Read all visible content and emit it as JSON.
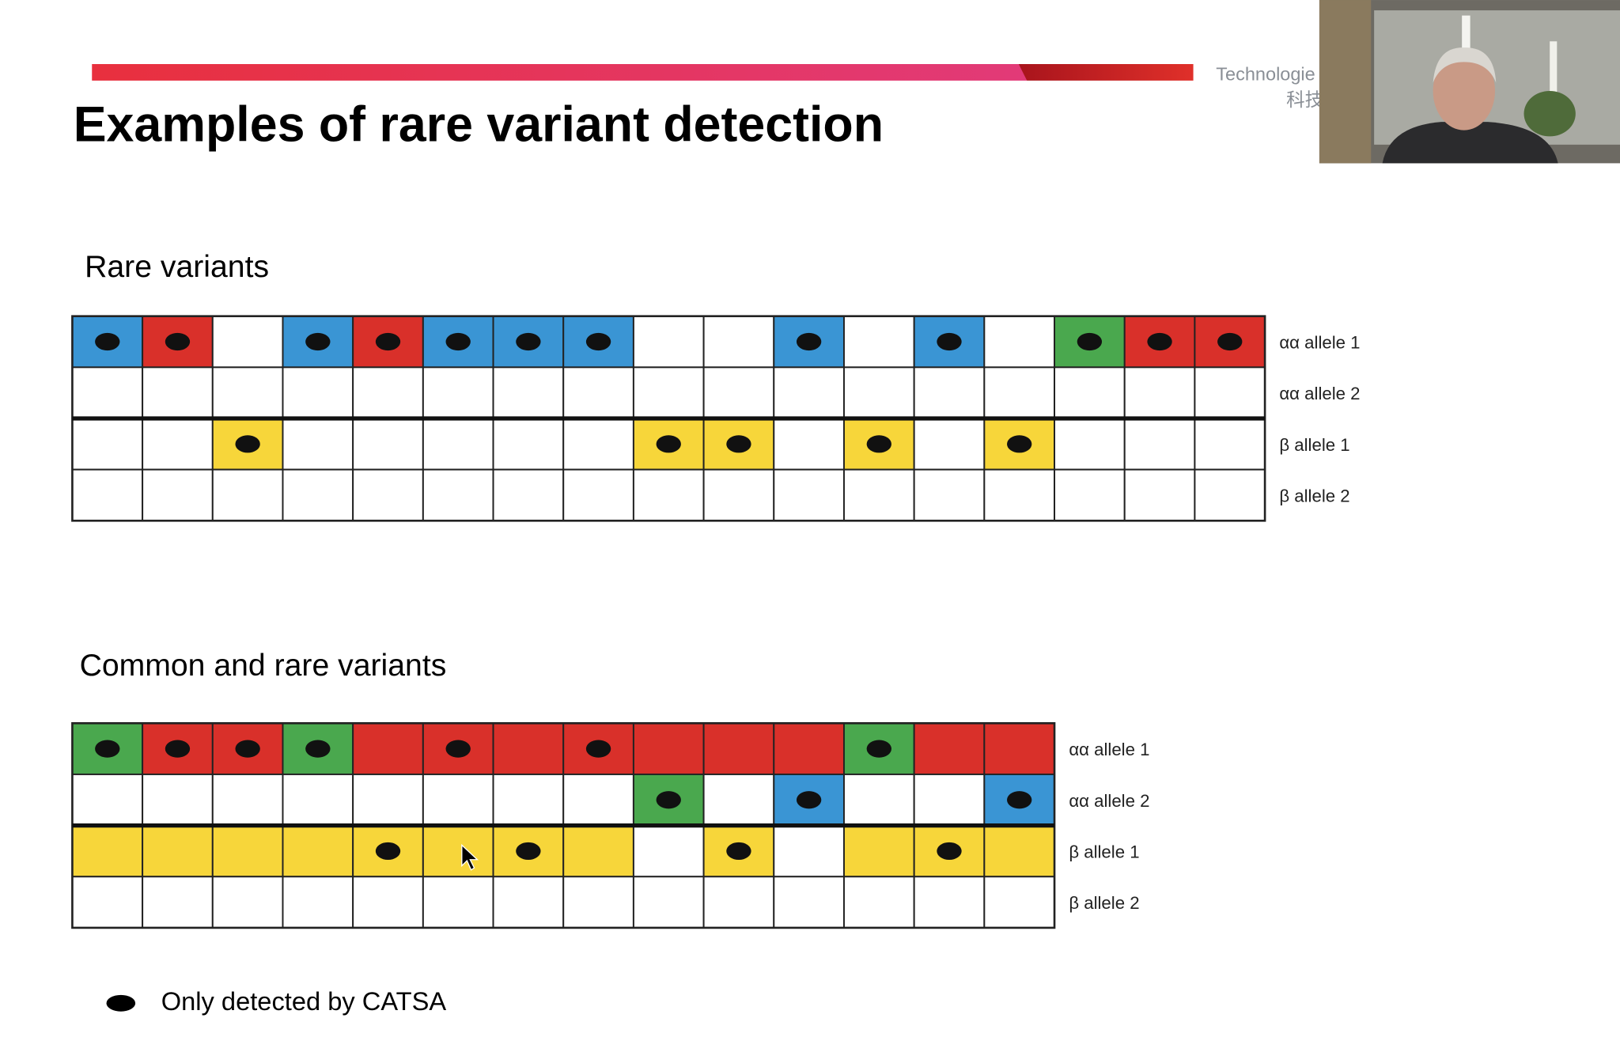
{
  "slide": {
    "title": "Examples of rare variant detection",
    "brand": {
      "text": "Technologie",
      "sub": "科技"
    },
    "sections": [
      {
        "heading": "Rare variants",
        "rows": [
          {
            "label": "αα allele 1",
            "cells": [
              {
                "color": "#3a95d4",
                "dot": true
              },
              {
                "color": "#d9302a",
                "dot": true
              },
              {
                "color": "#ffffff",
                "dot": false
              },
              {
                "color": "#3a95d4",
                "dot": true
              },
              {
                "color": "#d9302a",
                "dot": true
              },
              {
                "color": "#3a95d4",
                "dot": true
              },
              {
                "color": "#3a95d4",
                "dot": true
              },
              {
                "color": "#3a95d4",
                "dot": true
              },
              {
                "color": "#ffffff",
                "dot": false
              },
              {
                "color": "#ffffff",
                "dot": false
              },
              {
                "color": "#3a95d4",
                "dot": true
              },
              {
                "color": "#ffffff",
                "dot": false
              },
              {
                "color": "#3a95d4",
                "dot": true
              },
              {
                "color": "#ffffff",
                "dot": false
              },
              {
                "color": "#4aa84e",
                "dot": true
              },
              {
                "color": "#d9302a",
                "dot": true
              },
              {
                "color": "#d9302a",
                "dot": true
              }
            ]
          },
          {
            "label": "αα allele 2",
            "cells": [
              {
                "color": "#ffffff",
                "dot": false
              },
              {
                "color": "#ffffff",
                "dot": false
              },
              {
                "color": "#ffffff",
                "dot": false
              },
              {
                "color": "#ffffff",
                "dot": false
              },
              {
                "color": "#ffffff",
                "dot": false
              },
              {
                "color": "#ffffff",
                "dot": false
              },
              {
                "color": "#ffffff",
                "dot": false
              },
              {
                "color": "#ffffff",
                "dot": false
              },
              {
                "color": "#ffffff",
                "dot": false
              },
              {
                "color": "#ffffff",
                "dot": false
              },
              {
                "color": "#ffffff",
                "dot": false
              },
              {
                "color": "#ffffff",
                "dot": false
              },
              {
                "color": "#ffffff",
                "dot": false
              },
              {
                "color": "#ffffff",
                "dot": false
              },
              {
                "color": "#ffffff",
                "dot": false
              },
              {
                "color": "#ffffff",
                "dot": false
              },
              {
                "color": "#ffffff",
                "dot": false
              }
            ]
          },
          {
            "label": "β allele 1",
            "cells": [
              {
                "color": "#ffffff",
                "dot": false
              },
              {
                "color": "#ffffff",
                "dot": false
              },
              {
                "color": "#f7d63a",
                "dot": true
              },
              {
                "color": "#ffffff",
                "dot": false
              },
              {
                "color": "#ffffff",
                "dot": false
              },
              {
                "color": "#ffffff",
                "dot": false
              },
              {
                "color": "#ffffff",
                "dot": false
              },
              {
                "color": "#ffffff",
                "dot": false
              },
              {
                "color": "#f7d63a",
                "dot": true
              },
              {
                "color": "#f7d63a",
                "dot": true
              },
              {
                "color": "#ffffff",
                "dot": false
              },
              {
                "color": "#f7d63a",
                "dot": true
              },
              {
                "color": "#ffffff",
                "dot": false
              },
              {
                "color": "#f7d63a",
                "dot": true
              },
              {
                "color": "#ffffff",
                "dot": false
              },
              {
                "color": "#ffffff",
                "dot": false
              },
              {
                "color": "#ffffff",
                "dot": false
              }
            ]
          },
          {
            "label": "β allele 2",
            "cells": [
              {
                "color": "#ffffff",
                "dot": false
              },
              {
                "color": "#ffffff",
                "dot": false
              },
              {
                "color": "#ffffff",
                "dot": false
              },
              {
                "color": "#ffffff",
                "dot": false
              },
              {
                "color": "#ffffff",
                "dot": false
              },
              {
                "color": "#ffffff",
                "dot": false
              },
              {
                "color": "#ffffff",
                "dot": false
              },
              {
                "color": "#ffffff",
                "dot": false
              },
              {
                "color": "#ffffff",
                "dot": false
              },
              {
                "color": "#ffffff",
                "dot": false
              },
              {
                "color": "#ffffff",
                "dot": false
              },
              {
                "color": "#ffffff",
                "dot": false
              },
              {
                "color": "#ffffff",
                "dot": false
              },
              {
                "color": "#ffffff",
                "dot": false
              },
              {
                "color": "#ffffff",
                "dot": false
              },
              {
                "color": "#ffffff",
                "dot": false
              },
              {
                "color": "#ffffff",
                "dot": false
              }
            ]
          }
        ]
      },
      {
        "heading": "Common and rare variants",
        "rows": [
          {
            "label": "αα allele 1",
            "cells": [
              {
                "color": "#4aa84e",
                "dot": true
              },
              {
                "color": "#d9302a",
                "dot": true
              },
              {
                "color": "#d9302a",
                "dot": true
              },
              {
                "color": "#4aa84e",
                "dot": true
              },
              {
                "color": "#d9302a",
                "dot": false
              },
              {
                "color": "#d9302a",
                "dot": true
              },
              {
                "color": "#d9302a",
                "dot": false
              },
              {
                "color": "#d9302a",
                "dot": true
              },
              {
                "color": "#d9302a",
                "dot": false
              },
              {
                "color": "#d9302a",
                "dot": false
              },
              {
                "color": "#d9302a",
                "dot": false
              },
              {
                "color": "#4aa84e",
                "dot": true
              },
              {
                "color": "#d9302a",
                "dot": false
              },
              {
                "color": "#d9302a",
                "dot": false
              }
            ]
          },
          {
            "label": "αα allele 2",
            "cells": [
              {
                "color": "#ffffff",
                "dot": false
              },
              {
                "color": "#ffffff",
                "dot": false
              },
              {
                "color": "#ffffff",
                "dot": false
              },
              {
                "color": "#ffffff",
                "dot": false
              },
              {
                "color": "#ffffff",
                "dot": false
              },
              {
                "color": "#ffffff",
                "dot": false
              },
              {
                "color": "#ffffff",
                "dot": false
              },
              {
                "color": "#ffffff",
                "dot": false
              },
              {
                "color": "#4aa84e",
                "dot": true
              },
              {
                "color": "#ffffff",
                "dot": false
              },
              {
                "color": "#3a95d4",
                "dot": true
              },
              {
                "color": "#ffffff",
                "dot": false
              },
              {
                "color": "#ffffff",
                "dot": false
              },
              {
                "color": "#3a95d4",
                "dot": true
              }
            ]
          },
          {
            "label": "β allele 1",
            "cells": [
              {
                "color": "#f7d63a",
                "dot": false
              },
              {
                "color": "#f7d63a",
                "dot": false
              },
              {
                "color": "#f7d63a",
                "dot": false
              },
              {
                "color": "#f7d63a",
                "dot": false
              },
              {
                "color": "#f7d63a",
                "dot": true
              },
              {
                "color": "#f7d63a",
                "dot": false
              },
              {
                "color": "#f7d63a",
                "dot": true
              },
              {
                "color": "#f7d63a",
                "dot": false
              },
              {
                "color": "#ffffff",
                "dot": false
              },
              {
                "color": "#f7d63a",
                "dot": true
              },
              {
                "color": "#ffffff",
                "dot": false
              },
              {
                "color": "#f7d63a",
                "dot": false
              },
              {
                "color": "#f7d63a",
                "dot": true
              },
              {
                "color": "#f7d63a",
                "dot": false
              }
            ]
          },
          {
            "label": "β allele 2",
            "cells": [
              {
                "color": "#ffffff",
                "dot": false
              },
              {
                "color": "#ffffff",
                "dot": false
              },
              {
                "color": "#ffffff",
                "dot": false
              },
              {
                "color": "#ffffff",
                "dot": false
              },
              {
                "color": "#ffffff",
                "dot": false
              },
              {
                "color": "#ffffff",
                "dot": false
              },
              {
                "color": "#ffffff",
                "dot": false
              },
              {
                "color": "#ffffff",
                "dot": false
              },
              {
                "color": "#ffffff",
                "dot": false
              },
              {
                "color": "#ffffff",
                "dot": false
              },
              {
                "color": "#ffffff",
                "dot": false
              },
              {
                "color": "#ffffff",
                "dot": false
              },
              {
                "color": "#ffffff",
                "dot": false
              },
              {
                "color": "#ffffff",
                "dot": false
              }
            ]
          }
        ]
      }
    ],
    "legend": {
      "label": "Only detected by CATSA"
    }
  }
}
